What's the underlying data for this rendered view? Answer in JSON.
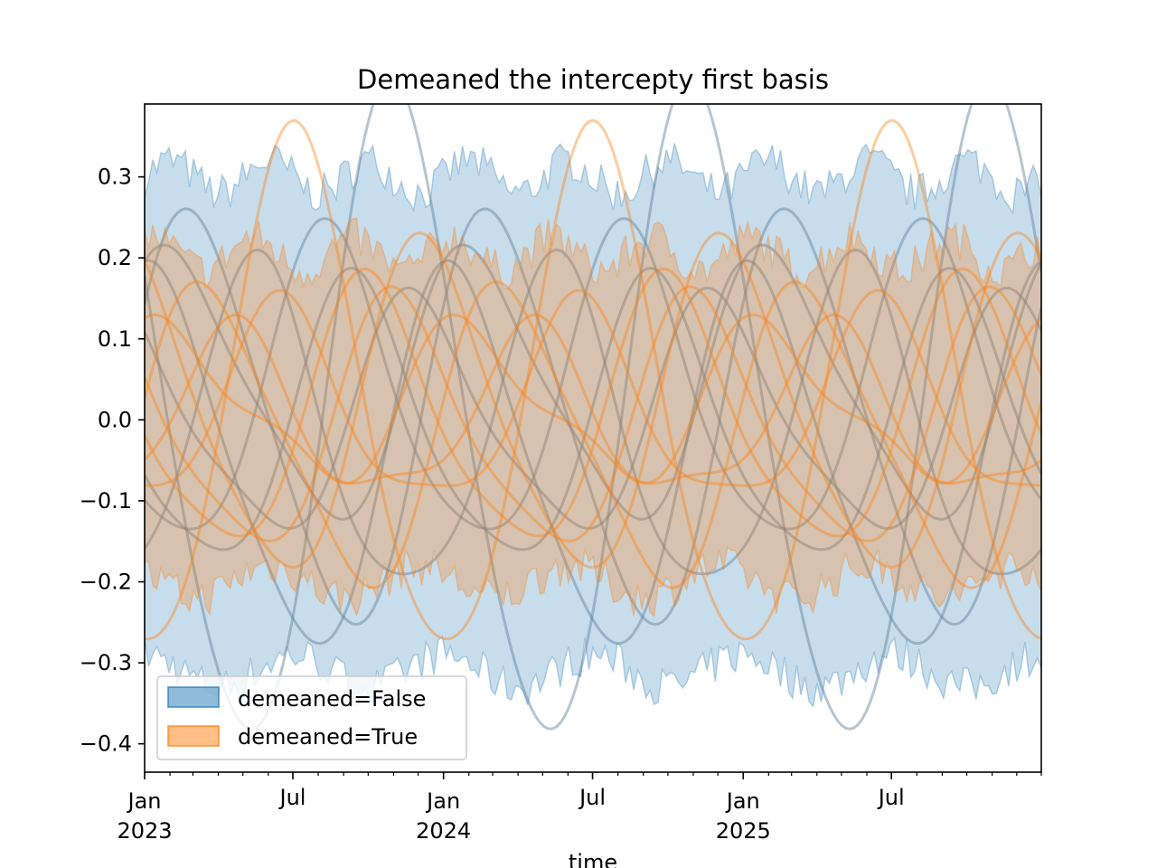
{
  "chart_data": {
    "type": "line",
    "title": "Demeaned the intercepty first basis",
    "xlabel": "time",
    "ylabel": "",
    "x_range": [
      "2023-01-01",
      "2025-12-31"
    ],
    "ylim": [
      -0.435,
      0.39
    ],
    "y_ticks": [
      0.3,
      0.2,
      0.1,
      0.0,
      -0.1,
      -0.2,
      -0.3,
      -0.4
    ],
    "y_tick_labels": [
      "0.3",
      "0.2",
      "0.1",
      "0.0",
      "−0.1",
      "−0.2",
      "−0.3",
      "−0.4"
    ],
    "x_major_ticks": [
      {
        "date": "2023-01-01",
        "label": "Jan",
        "sub": "2023"
      },
      {
        "date": "2023-07-01",
        "label": "Jul",
        "sub": ""
      },
      {
        "date": "2024-01-01",
        "label": "Jan",
        "sub": "2024"
      },
      {
        "date": "2024-07-01",
        "label": "Jul",
        "sub": ""
      },
      {
        "date": "2025-01-01",
        "label": "Jan",
        "sub": "2025"
      },
      {
        "date": "2025-07-01",
        "label": "Jul",
        "sub": ""
      }
    ],
    "grid": false,
    "legend_position": "lower-left",
    "series": [
      {
        "name": "demeaned=False",
        "color": "#1f77b4",
        "band_upper_level": 0.3,
        "band_lower_level": -0.31,
        "lines": [
          {
            "offset": 0.0,
            "amp": 0.25,
            "phase": 0.5
          },
          {
            "offset": 0.0,
            "amp": 0.4,
            "phase": 2.6
          },
          {
            "offset": -0.05,
            "amp": 0.23,
            "phase": 1.3
          },
          {
            "offset": 0.03,
            "amp": 0.19,
            "phase": 4.0
          },
          {
            "offset": -0.02,
            "amp": 0.2,
            "phase": 5.5
          },
          {
            "offset": 0.04,
            "amp": 0.16,
            "phase": 0.9
          },
          {
            "offset": -0.01,
            "amp": 0.17,
            "phase": 3.4
          },
          {
            "offset": 0.0,
            "amp": 0.14,
            "phase": 2.1
          }
        ]
      },
      {
        "name": "demeaned=True",
        "color": "#ff7f0e",
        "band_upper_level": 0.205,
        "band_lower_level": -0.2,
        "lines": [
          {
            "offset": 0.02,
            "amp": 0.32,
            "phase": 4.7
          },
          {
            "offset": 0.01,
            "amp": 0.2,
            "phase": 1.9
          },
          {
            "offset": -0.02,
            "amp": 0.18,
            "phase": 0.2
          },
          {
            "offset": 0.0,
            "amp": 0.16,
            "phase": 3.1
          },
          {
            "offset": 0.01,
            "amp": 0.12,
            "phase": 5.0
          },
          {
            "offset": -0.01,
            "amp": 0.15,
            "phase": 2.5
          },
          {
            "offset": 0.0,
            "amp": 0.1,
            "phase": 6.0
          },
          {
            "offset": 0.02,
            "amp": 0.09,
            "phase": 1.0
          }
        ]
      }
    ]
  }
}
